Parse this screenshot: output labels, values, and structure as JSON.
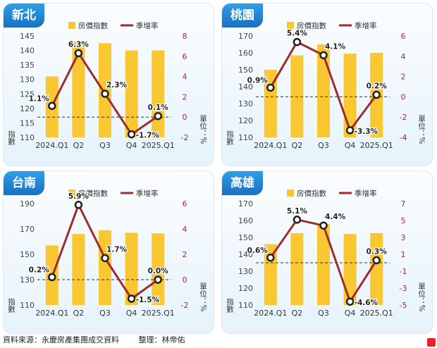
{
  "legend": {
    "index_label": "房價指數",
    "rate_label": "季增率"
  },
  "footer": {
    "source": "資料來源：永慶房產集團成交資料",
    "editor": "整理：林帝佑"
  },
  "colors": {
    "bar": "#f8c732",
    "line": "#9c2c2e",
    "axis_right": "#9c2c2e"
  },
  "chart_data": [
    {
      "type": "bar+line",
      "title": "新北",
      "categories": [
        "2024.Q1",
        "Q2",
        "Q3",
        "Q4",
        "2025.Q1"
      ],
      "series": [
        {
          "name": "房價指數",
          "values": [
            131,
            143,
            142.5,
            140,
            140
          ]
        },
        {
          "name": "季增率",
          "values": [
            1.1,
            6.3,
            2.3,
            -1.7,
            0.1
          ]
        }
      ],
      "rate_labels": [
        "1.1%",
        "6.3%",
        "2.3%",
        "-1.7%",
        "0.1%"
      ],
      "ylim_left": [
        110,
        145
      ],
      "ylim_right": [
        -2,
        8
      ],
      "yticks_left": [
        "110",
        "115",
        "120",
        "125",
        "130",
        "135",
        "140",
        "145"
      ],
      "yticks_right": [
        "-2",
        "0",
        "2",
        "4",
        "6",
        "8"
      ],
      "ylabel_left": "指數",
      "ylabel_right": "單位：%"
    },
    {
      "type": "bar+line",
      "title": "桃園",
      "categories": [
        "2024.Q1",
        "Q2",
        "Q3",
        "Q4",
        "2025.Q1"
      ],
      "series": [
        {
          "name": "房價指數",
          "values": [
            150,
            158.5,
            165,
            159.5,
            160
          ]
        },
        {
          "name": "季增率",
          "values": [
            0.9,
            5.4,
            4.1,
            -3.3,
            0.2
          ]
        }
      ],
      "rate_labels": [
        "0.9%",
        "5.4%",
        "4.1%",
        "-3.3%",
        "0.2%"
      ],
      "ylim_left": [
        110,
        170
      ],
      "ylim_right": [
        -4,
        6
      ],
      "yticks_left": [
        "110",
        "120",
        "130",
        "140",
        "150",
        "160",
        "170"
      ],
      "yticks_right": [
        "-4",
        "-2",
        "0",
        "2",
        "4",
        "6"
      ],
      "ylabel_left": "指數",
      "ylabel_right": "單位：%"
    },
    {
      "type": "bar+line",
      "title": "台南",
      "categories": [
        "2024.Q1",
        "Q2",
        "Q3",
        "Q4",
        "2025.Q1"
      ],
      "series": [
        {
          "name": "房價指數",
          "values": [
            157,
            166,
            169,
            167,
            166.5
          ]
        },
        {
          "name": "季增率",
          "values": [
            0.2,
            5.9,
            1.7,
            -1.5,
            0.0
          ]
        }
      ],
      "rate_labels": [
        "0.2%",
        "5.9%",
        "1.7%",
        "-1.5%",
        "0.0%"
      ],
      "ylim_left": [
        110,
        190
      ],
      "ylim_right": [
        -2,
        6
      ],
      "yticks_left": [
        "110",
        "130",
        "150",
        "170",
        "190"
      ],
      "yticks_right": [
        "-2",
        "0",
        "2",
        "4",
        "6"
      ],
      "ylabel_left": "指數",
      "ylabel_right": "單位：%"
    },
    {
      "type": "bar+line",
      "title": "高雄",
      "categories": [
        "2024.Q1",
        "Q2",
        "Q3",
        "Q4",
        "2025.Q1"
      ],
      "series": [
        {
          "name": "房價指數",
          "values": [
            146,
            152.5,
            158,
            152,
            152.5
          ]
        },
        {
          "name": "季增率",
          "values": [
            0.6,
            5.1,
            4.4,
            -4.6,
            0.3
          ]
        }
      ],
      "rate_labels": [
        "0.6%",
        "5.1%",
        "4.4%",
        "-4.6%",
        "0.3%"
      ],
      "ylim_left": [
        110,
        170
      ],
      "ylim_right": [
        -5,
        7
      ],
      "yticks_left": [
        "110",
        "120",
        "130",
        "140",
        "150",
        "160",
        "170"
      ],
      "yticks_right": [
        "-5",
        "-3",
        "-1",
        "1",
        "3",
        "5",
        "7"
      ],
      "ylabel_left": "指數",
      "ylabel_right": "單位：%"
    }
  ]
}
